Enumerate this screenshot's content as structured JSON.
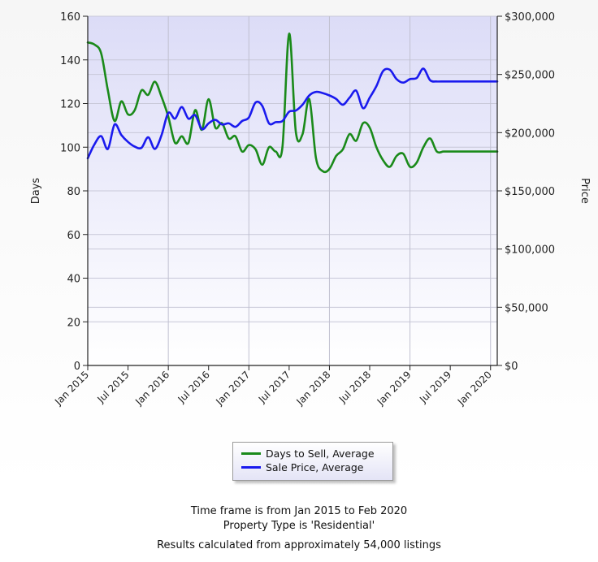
{
  "chart_data": {
    "type": "line",
    "title": "",
    "y_left": {
      "label": "Days",
      "ylim": [
        0,
        160
      ],
      "ticks": [
        "0",
        "20",
        "40",
        "60",
        "80",
        "100",
        "120",
        "140",
        "160"
      ]
    },
    "y_right": {
      "label": "Price",
      "ylim": [
        0,
        300000
      ],
      "ticks": [
        "$0",
        "$50,000",
        "$100,000",
        "$150,000",
        "$200,000",
        "$250,000",
        "$300,000"
      ]
    },
    "x_ticks": [
      "Jan 2015",
      "Jul 2015",
      "Jan 2016",
      "Jul 2016",
      "Jan 2017",
      "Jul 2017",
      "Jan 2018",
      "Jul 2018",
      "Jan 2019",
      "Jul 2019",
      "Jan 2020"
    ],
    "x_range": [
      "Jan 2015",
      "Feb 2020"
    ],
    "grid": true,
    "legend_position": "bottom-center",
    "series": [
      {
        "name": "Days to Sell, Average",
        "axis": "left",
        "color": "#1a8a1a",
        "x": [
          "2015-01",
          "2015-02",
          "2015-03",
          "2015-04",
          "2015-05",
          "2015-06",
          "2015-07",
          "2015-08",
          "2015-09",
          "2015-10",
          "2015-11",
          "2015-12",
          "2016-01",
          "2016-02",
          "2016-03",
          "2016-04",
          "2016-05",
          "2016-06",
          "2016-07",
          "2016-08",
          "2016-09",
          "2016-10",
          "2016-11",
          "2016-12",
          "2017-01",
          "2017-02",
          "2017-03",
          "2017-04",
          "2017-05",
          "2017-06",
          "2017-07",
          "2017-08",
          "2017-09",
          "2017-10",
          "2017-11",
          "2017-12",
          "2018-01",
          "2018-02",
          "2018-03",
          "2018-04",
          "2018-05",
          "2018-06",
          "2018-07",
          "2018-08",
          "2018-09",
          "2018-10",
          "2018-11",
          "2018-12",
          "2019-01",
          "2019-02",
          "2019-03",
          "2019-04",
          "2019-05",
          "2019-06",
          "2019-07",
          "2019-08",
          "2019-09",
          "2019-10",
          "2019-11",
          "2019-12",
          "2020-01",
          "2020-02"
        ],
        "values": [
          148,
          147,
          143,
          126,
          112,
          121,
          115,
          117,
          126,
          124,
          130,
          123,
          114,
          102,
          105,
          102,
          117,
          108,
          122,
          109,
          111,
          104,
          105,
          98,
          101,
          99,
          92,
          100,
          98,
          100,
          152,
          107,
          106,
          122,
          95,
          89,
          90,
          96,
          99,
          106,
          103,
          111,
          109,
          100,
          94,
          91,
          96,
          97,
          91,
          93,
          100,
          104,
          98,
          98,
          98,
          98,
          98,
          98,
          98,
          98,
          98,
          98
        ]
      },
      {
        "name": "Sale Price, Average",
        "axis": "right",
        "color": "#1a1aee",
        "x": [
          "2015-01",
          "2015-02",
          "2015-03",
          "2015-04",
          "2015-05",
          "2015-06",
          "2015-07",
          "2015-08",
          "2015-09",
          "2015-10",
          "2015-11",
          "2015-12",
          "2016-01",
          "2016-02",
          "2016-03",
          "2016-04",
          "2016-05",
          "2016-06",
          "2016-07",
          "2016-08",
          "2016-09",
          "2016-10",
          "2016-11",
          "2016-12",
          "2017-01",
          "2017-02",
          "2017-03",
          "2017-04",
          "2017-05",
          "2017-06",
          "2017-07",
          "2017-08",
          "2017-09",
          "2017-10",
          "2017-11",
          "2017-12",
          "2018-01",
          "2018-02",
          "2018-03",
          "2018-04",
          "2018-05",
          "2018-06",
          "2018-07",
          "2018-08",
          "2018-09",
          "2018-10",
          "2018-11",
          "2018-12",
          "2019-01",
          "2019-02",
          "2019-03",
          "2019-04",
          "2019-05",
          "2019-06",
          "2019-07",
          "2019-08",
          "2019-09",
          "2019-10",
          "2019-11",
          "2019-12",
          "2020-01",
          "2020-02"
        ],
        "values": [
          178000,
          190000,
          197000,
          186000,
          207000,
          198000,
          192000,
          188000,
          187000,
          196000,
          186000,
          198000,
          217000,
          212000,
          222000,
          212000,
          215000,
          203000,
          208000,
          211000,
          207000,
          208000,
          205000,
          210000,
          213000,
          226000,
          223000,
          208000,
          209000,
          210000,
          218000,
          219000,
          224000,
          232000,
          235000,
          234000,
          232000,
          229000,
          224000,
          230000,
          236000,
          221000,
          230000,
          240000,
          253000,
          254000,
          246000,
          243000,
          246000,
          247000,
          255000,
          245000,
          244000,
          244000,
          244000,
          244000,
          244000,
          244000,
          244000,
          244000,
          244000,
          244000
        ]
      }
    ]
  },
  "footer": {
    "line1": "Time frame is from Jan 2015 to Feb 2020",
    "line2": "Property Type is 'Residential'",
    "line3": "Results calculated from approximately 54,000 listings"
  }
}
